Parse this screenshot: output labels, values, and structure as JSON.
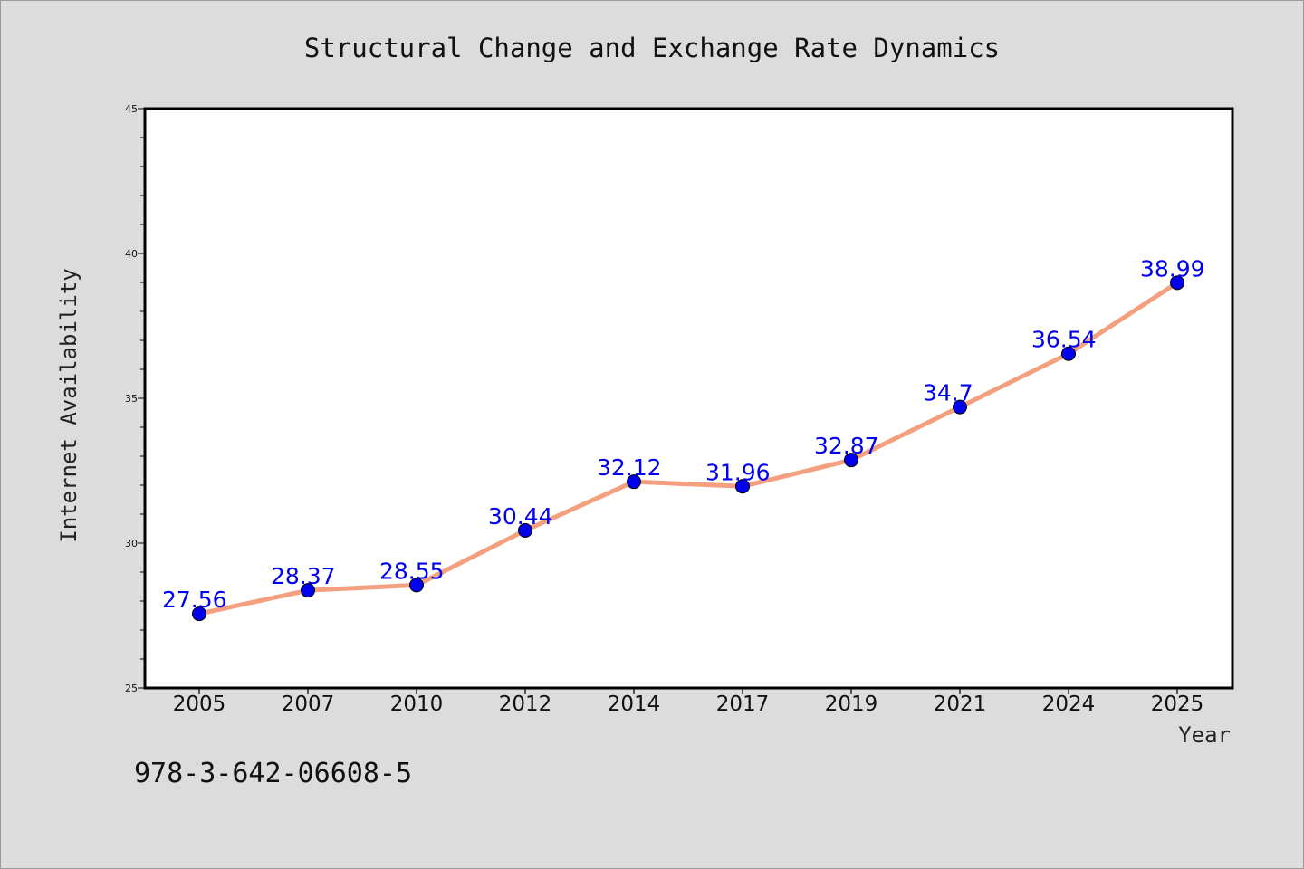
{
  "chart_data": {
    "type": "line",
    "title": "Structural Change and Exchange Rate Dynamics",
    "xlabel": "Year",
    "ylabel": "Internet Availability",
    "categories": [
      "2005",
      "2007",
      "2010",
      "2012",
      "2014",
      "2017",
      "2019",
      "2021",
      "2024",
      "2025"
    ],
    "values": [
      27.56,
      28.37,
      28.55,
      30.44,
      32.12,
      31.96,
      32.87,
      34.7,
      36.54,
      38.99
    ],
    "data_labels": [
      "27.56",
      "28.37",
      "28.55",
      "30.44",
      "32.12",
      "31.96",
      "32.87",
      "34.7",
      "36.54",
      "38.99"
    ],
    "ylim": [
      25,
      45
    ],
    "yticks": [
      25,
      30,
      35,
      40,
      45
    ],
    "grid": false,
    "legend": "none",
    "line_color": "#f4a07e",
    "marker_color": "#0000ee",
    "label_color": "#0000ee"
  },
  "footer": {
    "isbn": "978-3-642-06608-5"
  }
}
